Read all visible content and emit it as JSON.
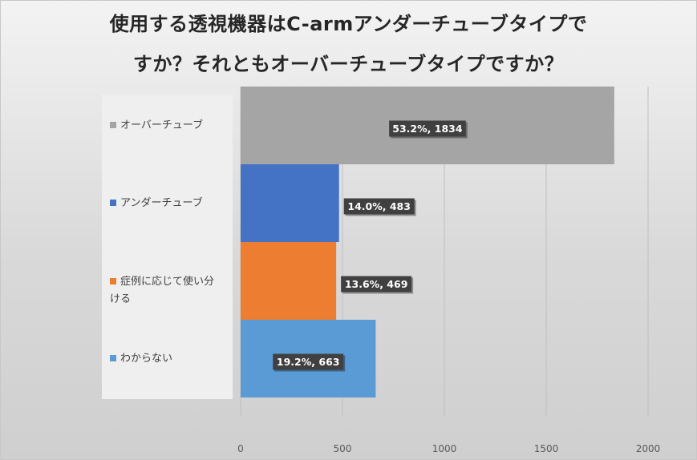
{
  "title": {
    "line1": "使用する透視機器はC-armアンダーチューブタイプで",
    "line2": "すか？それともオーバーチューブタイプですか？"
  },
  "chart_data": {
    "type": "bar",
    "orientation": "horizontal",
    "categories": [
      "オーバーチューブ",
      "アンダーチューブ",
      "症例に応じて使い分ける",
      "わからない"
    ],
    "legend_labels": [
      [
        "オーバーチューブ"
      ],
      [
        "アンダーチューブ"
      ],
      [
        "症例に応じて使い分",
        "ける"
      ],
      [
        "わからない"
      ]
    ],
    "values": [
      1834,
      483,
      469,
      663
    ],
    "data_labels": [
      "53.2%, 1834",
      "14.0%, 483",
      "13.6%, 469",
      "19.2%, 663"
    ],
    "colors": [
      "#a5a5a5",
      "#4472c4",
      "#ed7d31",
      "#5b9bd5"
    ],
    "xlim": [
      0,
      2000
    ],
    "x_ticks": [
      0,
      500,
      1000,
      1500,
      2000
    ],
    "grid": true,
    "legend_position": "left"
  }
}
